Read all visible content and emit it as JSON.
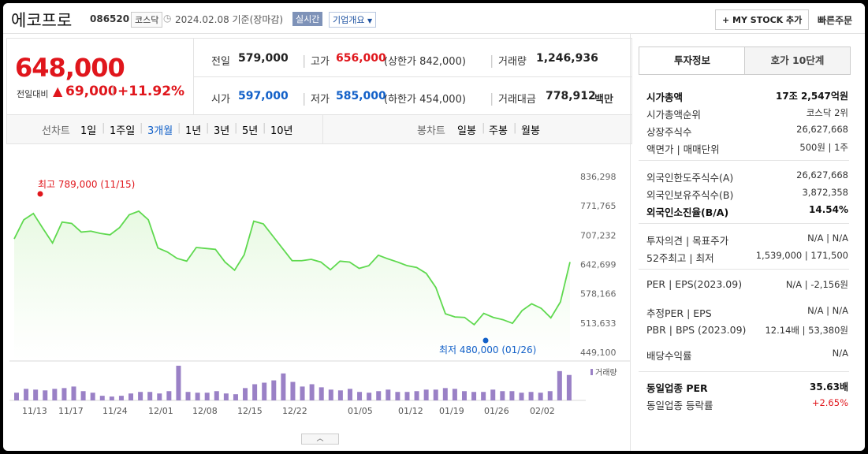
{
  "header": {
    "stock_name": "에코프로",
    "code": "086520",
    "market_badge": "코스닥",
    "date_text": "2024.02.08  기준(장마감)",
    "realtime_badge": "실시간",
    "company_overview": "기업개요",
    "my_stock_button": "+ MY STOCK 추가",
    "quick_order": "빠른주문"
  },
  "price": {
    "current": "648,000",
    "change_label": "전일대비",
    "change_symbol": "▲",
    "change_value": "69,000",
    "change_pct": "+11.92%"
  },
  "summary": {
    "prev_label": "전일",
    "prev_value": "579,000",
    "high_label": "고가",
    "high_value": "656,000",
    "upper_limit": "(상한가 842,000)",
    "volume_label": "거래량",
    "volume_value": "1,246,936",
    "open_label": "시가",
    "open_value": "597,000",
    "low_label": "저가",
    "low_value": "585,000",
    "lower_limit": "(하한가 454,000)",
    "amount_label": "거래대금",
    "amount_value": "778,912",
    "amount_unit": "백만"
  },
  "chart_tabs": {
    "line_label": "선차트",
    "periods": [
      "1일",
      "1주일",
      "3개월",
      "1년",
      "3년",
      "5년",
      "10년"
    ],
    "active_period": "3개월",
    "candle_label": "봉차트",
    "candle_periods": [
      "일봉",
      "주봉",
      "월봉"
    ]
  },
  "chart_data": {
    "type": "area",
    "y_ticks": [
      "836,298",
      "771,765",
      "707,232",
      "642,699",
      "578,166",
      "513,633",
      "449,100"
    ],
    "ylim": [
      449100,
      836298
    ],
    "x_ticks": [
      "11/13",
      "11/17",
      "11/24",
      "12/01",
      "12/08",
      "12/15",
      "12/22",
      "01/05",
      "01/12",
      "01/19",
      "01/26",
      "02/02"
    ],
    "values": [
      699000,
      741000,
      755000,
      722000,
      690000,
      736000,
      733000,
      714000,
      716000,
      711000,
      708000,
      724000,
      752000,
      760000,
      741000,
      679000,
      670000,
      656000,
      650000,
      680000,
      678000,
      676000,
      648000,
      630000,
      664000,
      738000,
      732000,
      705000,
      678000,
      651000,
      651000,
      654000,
      648000,
      631000,
      650000,
      648000,
      634000,
      640000,
      663000,
      655000,
      648000,
      640000,
      636000,
      623000,
      592000,
      534000,
      527000,
      526000,
      510000,
      535000,
      526000,
      521000,
      513000,
      541000,
      556000,
      546000,
      525000,
      560000,
      648000
    ],
    "volume": [
      10,
      15,
      14,
      13,
      15,
      16,
      18,
      12,
      10,
      6,
      5,
      6,
      9,
      11,
      11,
      9,
      12,
      45,
      11,
      10,
      10,
      12,
      9,
      8,
      16,
      21,
      23,
      26,
      35,
      24,
      18,
      21,
      17,
      14,
      13,
      15,
      11,
      10,
      12,
      14,
      11,
      11,
      12,
      14,
      14,
      16,
      15,
      12,
      11,
      11,
      14,
      12,
      12,
      10,
      11,
      10,
      12,
      38,
      33
    ],
    "volume_label": "거래량",
    "high_annotation": "최고  789,000 (11/15)",
    "low_annotation": "최저  480,000 (01/26)",
    "colors": {
      "line": "#5fd94f",
      "fill": "#e6f9e0",
      "volume": "#9a81c6",
      "high": "#e0161c",
      "low": "#1260c8"
    }
  },
  "side": {
    "tab_active": "투자정보",
    "tab_other": "호가 10단계",
    "rows1": [
      {
        "label": "시가총액",
        "value": "17조 2,547억원",
        "bold": true
      },
      {
        "label": "시가총액순위",
        "value": "코스닥 2위"
      },
      {
        "label": "상장주식수",
        "value": "26,627,668"
      },
      {
        "label": "액면가 | 매매단위",
        "value": "500원 | 1주"
      }
    ],
    "rows2": [
      {
        "label": "외국인한도주식수(A)",
        "value": "26,627,668"
      },
      {
        "label": "외국인보유주식수(B)",
        "value": "3,872,358"
      },
      {
        "label": "외국인소진율(B/A)",
        "value": "14.54%",
        "bold": true
      }
    ],
    "rows3": [
      {
        "label": "투자의견 | 목표주가",
        "value": "N/A | N/A"
      },
      {
        "label": "52주최고 | 최저",
        "value": "1,539,000 | 171,500"
      }
    ],
    "rows4": [
      {
        "label": "PER | EPS(2023.09)",
        "value": "N/A | -2,156원"
      },
      {
        "label": "추정PER | EPS",
        "value": "N/A | N/A"
      },
      {
        "label": "PBR | BPS (2023.09)",
        "value": "12.14배 | 53,380원"
      },
      {
        "label": "배당수익률",
        "value": "N/A"
      }
    ],
    "rows5": [
      {
        "label": "동일업종 PER",
        "value": "35.63배",
        "bold": true
      },
      {
        "label": "동일업종 등락률",
        "value": "+2.65%",
        "red": true
      }
    ]
  }
}
